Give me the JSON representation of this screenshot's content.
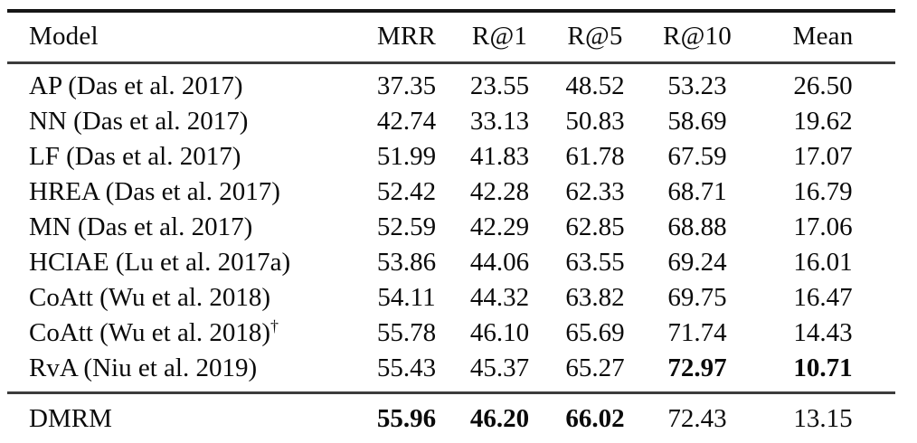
{
  "table": {
    "title": "visual-dialog-retrieval-results",
    "columns": [
      "Model",
      "MRR",
      "R@1",
      "R@5",
      "R@10",
      "Mean"
    ],
    "rows": [
      {
        "model": "AP (Das et al. 2017)",
        "sup": "",
        "values": [
          "37.35",
          "23.55",
          "48.52",
          "53.23",
          "26.50"
        ],
        "bold": [
          false,
          false,
          false,
          false,
          false
        ]
      },
      {
        "model": "NN (Das et al. 2017)",
        "sup": "",
        "values": [
          "42.74",
          "33.13",
          "50.83",
          "58.69",
          "19.62"
        ],
        "bold": [
          false,
          false,
          false,
          false,
          false
        ]
      },
      {
        "model": "LF (Das et al. 2017)",
        "sup": "",
        "values": [
          "51.99",
          "41.83",
          "61.78",
          "67.59",
          "17.07"
        ],
        "bold": [
          false,
          false,
          false,
          false,
          false
        ]
      },
      {
        "model": "HREA (Das et al. 2017)",
        "sup": "",
        "values": [
          "52.42",
          "42.28",
          "62.33",
          "68.71",
          "16.79"
        ],
        "bold": [
          false,
          false,
          false,
          false,
          false
        ]
      },
      {
        "model": "MN (Das et al. 2017)",
        "sup": "",
        "values": [
          "52.59",
          "42.29",
          "62.85",
          "68.88",
          "17.06"
        ],
        "bold": [
          false,
          false,
          false,
          false,
          false
        ]
      },
      {
        "model": "HCIAE (Lu et al. 2017a)",
        "sup": "",
        "values": [
          "53.86",
          "44.06",
          "63.55",
          "69.24",
          "16.01"
        ],
        "bold": [
          false,
          false,
          false,
          false,
          false
        ]
      },
      {
        "model": "CoAtt (Wu et al. 2018)",
        "sup": "",
        "values": [
          "54.11",
          "44.32",
          "63.82",
          "69.75",
          "16.47"
        ],
        "bold": [
          false,
          false,
          false,
          false,
          false
        ]
      },
      {
        "model": "CoAtt (Wu et al. 2018)",
        "sup": "†",
        "values": [
          "55.78",
          "46.10",
          "65.69",
          "71.74",
          "14.43"
        ],
        "bold": [
          false,
          false,
          false,
          false,
          false
        ]
      },
      {
        "model": "RvA (Niu et al. 2019)",
        "sup": "",
        "values": [
          "55.43",
          "45.37",
          "65.27",
          "72.97",
          "10.71"
        ],
        "bold": [
          false,
          false,
          false,
          true,
          true
        ]
      }
    ],
    "footer_rows": [
      {
        "model": "DMRM",
        "sup": "",
        "values": [
          "55.96",
          "46.20",
          "66.02",
          "72.43",
          "13.15"
        ],
        "bold": [
          true,
          true,
          true,
          false,
          false
        ]
      }
    ]
  }
}
